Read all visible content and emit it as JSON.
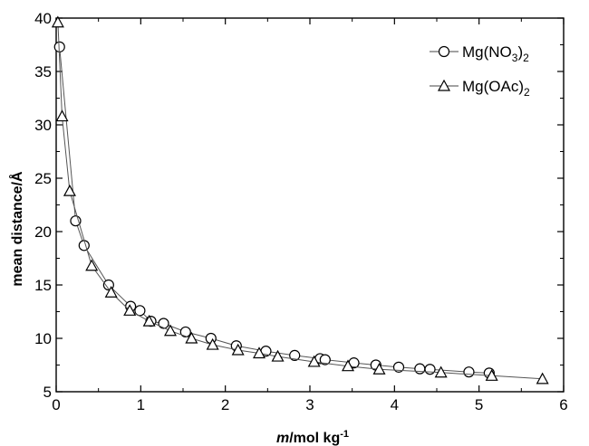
{
  "chart_data": {
    "type": "line",
    "xlabel": {
      "italic": "m",
      "rest": "/mol kg",
      "sup": "-1"
    },
    "ylabel": "mean distance/Å",
    "xlim": [
      0,
      6
    ],
    "ylim": [
      5,
      40
    ],
    "x_ticks": [
      "0",
      "1",
      "2",
      "3",
      "4",
      "5",
      "6"
    ],
    "y_ticks": [
      "5",
      "10",
      "15",
      "20",
      "25",
      "30",
      "35",
      "40"
    ],
    "grid": false,
    "legend_position": "top-right",
    "series": [
      {
        "name": "Mg(NO3)2",
        "legend": {
          "pre": "Mg(NO",
          "sub": "3",
          "mid": ")",
          "sub2": "2"
        },
        "marker": "circle",
        "points": [
          [
            0.04,
            37.3
          ],
          [
            0.23,
            21.0
          ],
          [
            0.33,
            18.7
          ],
          [
            0.62,
            15.0
          ],
          [
            0.88,
            13.0
          ],
          [
            0.99,
            12.6
          ],
          [
            1.12,
            11.6
          ],
          [
            1.27,
            11.4
          ],
          [
            1.53,
            10.6
          ],
          [
            1.83,
            10.0
          ],
          [
            2.13,
            9.3
          ],
          [
            2.48,
            8.8
          ],
          [
            2.82,
            8.4
          ],
          [
            3.12,
            8.1
          ],
          [
            3.18,
            8.0
          ],
          [
            3.52,
            7.7
          ],
          [
            3.78,
            7.5
          ],
          [
            4.05,
            7.3
          ],
          [
            4.3,
            7.15
          ],
          [
            4.42,
            7.1
          ],
          [
            4.88,
            6.85
          ],
          [
            5.12,
            6.75
          ]
        ]
      },
      {
        "name": "Mg(OAc)2",
        "legend": {
          "pre": "Mg(OAc)",
          "sub": "2",
          "mid": "",
          "sub2": ""
        },
        "marker": "triangle",
        "points": [
          [
            0.02,
            39.6
          ],
          [
            0.07,
            30.8
          ],
          [
            0.16,
            23.8
          ],
          [
            0.42,
            16.8
          ],
          [
            0.65,
            14.3
          ],
          [
            0.87,
            12.6
          ],
          [
            1.1,
            11.6
          ],
          [
            1.35,
            10.7
          ],
          [
            1.6,
            10.0
          ],
          [
            1.85,
            9.4
          ],
          [
            2.15,
            8.9
          ],
          [
            2.4,
            8.6
          ],
          [
            2.62,
            8.3
          ],
          [
            3.05,
            7.8
          ],
          [
            3.45,
            7.4
          ],
          [
            3.82,
            7.1
          ],
          [
            4.55,
            6.8
          ],
          [
            5.15,
            6.5
          ],
          [
            5.75,
            6.2
          ]
        ]
      }
    ]
  }
}
